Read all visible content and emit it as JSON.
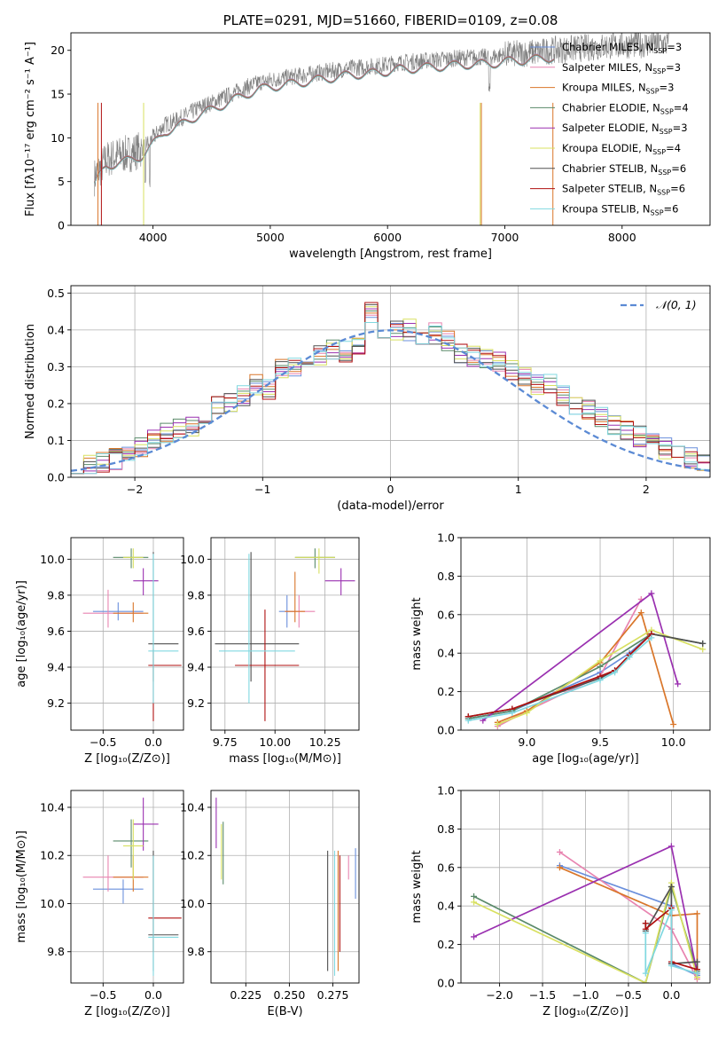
{
  "chart_data": [
    {
      "id": "spectrum",
      "type": "line",
      "title": "PLATE=0291, MJD=51660, FIBERID=0109, z=0.08",
      "xlabel": "wavelength [Angstrom, rest frame]",
      "ylabel": "Flux [fλ10⁻¹⁷ erg cm⁻² s⁻¹ A⁻¹]",
      "xlim": [
        3300,
        8750
      ],
      "ylim": [
        0,
        22
      ],
      "xticks": [
        "4000",
        "5000",
        "6000",
        "7000",
        "8000"
      ],
      "yticks": [
        "0",
        "5",
        "10",
        "15",
        "20"
      ],
      "data_color": "#808080",
      "data_points": [
        [
          3500,
          5.5
        ],
        [
          3600,
          7.5
        ],
        [
          3700,
          8.0
        ],
        [
          3800,
          8.2
        ],
        [
          3900,
          8.7
        ],
        [
          4000,
          10.0
        ],
        [
          4100,
          11.5
        ],
        [
          4200,
          12.0
        ],
        [
          4300,
          12.7
        ],
        [
          4400,
          13.5
        ],
        [
          4500,
          14.0
        ],
        [
          4600,
          14.6
        ],
        [
          4700,
          15.2
        ],
        [
          4800,
          15.8
        ],
        [
          4900,
          16.3
        ],
        [
          5000,
          16.6
        ],
        [
          5100,
          16.8
        ],
        [
          5200,
          17.0
        ],
        [
          5300,
          17.2
        ],
        [
          5400,
          17.4
        ],
        [
          5500,
          17.6
        ],
        [
          5600,
          17.8
        ],
        [
          5700,
          18.0
        ],
        [
          5800,
          18.1
        ],
        [
          5900,
          18.2
        ],
        [
          6000,
          18.4
        ],
        [
          6100,
          18.6
        ],
        [
          6200,
          18.7
        ],
        [
          6300,
          18.8
        ],
        [
          6400,
          18.9
        ],
        [
          6500,
          19.0
        ],
        [
          6600,
          19.1
        ],
        [
          6700,
          19.2
        ],
        [
          6800,
          19.2
        ],
        [
          6900,
          19.3
        ],
        [
          7000,
          19.5
        ],
        [
          7100,
          19.6
        ],
        [
          7200,
          19.7
        ],
        [
          7300,
          19.8
        ],
        [
          7400,
          20.0
        ],
        [
          7600,
          20.2
        ],
        [
          7800,
          20.4
        ],
        [
          8000,
          20.6
        ],
        [
          8200,
          20.7
        ],
        [
          8400,
          20.7
        ]
      ],
      "legend": [
        {
          "name": "Chabrier MILES, N",
          "sub": "SSP",
          "suffix": "=3",
          "color": "#6a8fdc"
        },
        {
          "name": "Salpeter MILES, N",
          "sub": "SSP",
          "suffix": "=3",
          "color": "#e884b0"
        },
        {
          "name": "Kroupa MILES, N",
          "sub": "SSP",
          "suffix": "=3",
          "color": "#d9762a"
        },
        {
          "name": "Chabrier ELODIE, N",
          "sub": "SSP",
          "suffix": "=4",
          "color": "#5a8a6a"
        },
        {
          "name": "Salpeter ELODIE, N",
          "sub": "SSP",
          "suffix": "=3",
          "color": "#9a30b0"
        },
        {
          "name": "Kroupa ELODIE, N",
          "sub": "SSP",
          "suffix": "=4",
          "color": "#d8e060"
        },
        {
          "name": "Chabrier STELIB, N",
          "sub": "SSP",
          "suffix": "=6",
          "color": "#505050"
        },
        {
          "name": "Salpeter STELIB, N",
          "sub": "SSP",
          "suffix": "=6",
          "color": "#b01010"
        },
        {
          "name": "Kroupa STELIB, N",
          "sub": "SSP",
          "suffix": "=6",
          "color": "#80d8e0"
        }
      ]
    },
    {
      "id": "residuals",
      "type": "bar",
      "xlabel": "(data-model)/error",
      "ylabel": "Normed distribution",
      "xlim": [
        -2.5,
        2.5
      ],
      "ylim": [
        0,
        0.52
      ],
      "xticks": [
        "−2",
        "−1",
        "0",
        "1",
        "2"
      ],
      "yticks": [
        "0.0",
        "0.1",
        "0.2",
        "0.3",
        "0.4",
        "0.5"
      ],
      "legend_label": "𝒩(0, 1)",
      "bin_width": 0.1,
      "bins_start": -2.5,
      "hist": [
        0.03,
        0.03,
        0.04,
        0.05,
        0.06,
        0.08,
        0.1,
        0.12,
        0.13,
        0.14,
        0.17,
        0.19,
        0.2,
        0.22,
        0.25,
        0.24,
        0.3,
        0.3,
        0.33,
        0.33,
        0.35,
        0.34,
        0.36,
        0.45,
        0.39,
        0.4,
        0.4,
        0.38,
        0.39,
        0.37,
        0.34,
        0.33,
        0.32,
        0.31,
        0.29,
        0.27,
        0.25,
        0.25,
        0.22,
        0.2,
        0.18,
        0.16,
        0.14,
        0.13,
        0.11,
        0.1,
        0.08,
        0.07,
        0.05,
        0.04
      ]
    },
    {
      "id": "age_vs_Z",
      "type": "scatter",
      "xlabel": "Z [log₁₀(Z/Z⊙)]",
      "ylabel": "age  [log₁₀(age/yr)]",
      "xlim": [
        -0.82,
        0.3
      ],
      "ylim": [
        9.05,
        10.12
      ],
      "xticks": [
        "−0.5",
        "0.0"
      ],
      "yticks": [
        "9.2",
        "9.4",
        "9.6",
        "9.8",
        "10.0"
      ],
      "points": [
        {
          "x": -0.35,
          "y": 9.71,
          "xl": -0.6,
          "xh": -0.1,
          "yl": 9.66,
          "yh": 9.76,
          "color": "#6a8fdc"
        },
        {
          "x": -0.45,
          "y": 9.7,
          "xl": -0.7,
          "xh": -0.1,
          "yl": 9.62,
          "yh": 9.83,
          "color": "#e884b0"
        },
        {
          "x": -0.2,
          "y": 9.7,
          "xl": -0.4,
          "xh": -0.05,
          "yl": 9.65,
          "yh": 9.76,
          "color": "#d9762a"
        },
        {
          "x": -0.22,
          "y": 10.01,
          "xl": -0.4,
          "xh": -0.05,
          "yl": 9.95,
          "yh": 10.06,
          "color": "#5a8a6a"
        },
        {
          "x": -0.1,
          "y": 9.88,
          "xl": -0.2,
          "xh": 0.05,
          "yl": 9.8,
          "yh": 9.95,
          "color": "#9a30b0"
        },
        {
          "x": -0.2,
          "y": 10.01,
          "xl": -0.3,
          "xh": -0.1,
          "yl": 9.95,
          "yh": 10.06,
          "color": "#d8e060"
        },
        {
          "x": 0.0,
          "y": 9.53,
          "xl": -0.05,
          "xh": 0.25,
          "yl": 9.32,
          "yh": 10.04,
          "color": "#505050"
        },
        {
          "x": 0.0,
          "y": 9.41,
          "xl": -0.05,
          "xh": 0.28,
          "yl": 9.1,
          "yh": 9.5,
          "color": "#b01010"
        },
        {
          "x": 0.0,
          "y": 9.49,
          "xl": -0.05,
          "xh": 0.25,
          "yl": 9.2,
          "yh": 10.03,
          "color": "#80d8e0"
        }
      ]
    },
    {
      "id": "age_vs_mass",
      "type": "scatter",
      "xlabel": "mass [log₁₀(M/M⊙)]",
      "ylabel": "",
      "xlim": [
        9.68,
        10.42
      ],
      "ylim": [
        9.05,
        10.12
      ],
      "xticks": [
        "9.75",
        "10.00",
        "10.25"
      ],
      "yticks": [
        "9.2",
        "9.4",
        "9.6",
        "9.8",
        "10.0"
      ],
      "points": [
        {
          "x": 10.06,
          "y": 9.71,
          "xl": 10.02,
          "xh": 10.1,
          "yl": 9.62,
          "yh": 9.8,
          "color": "#6a8fdc"
        },
        {
          "x": 10.12,
          "y": 9.71,
          "xl": 10.05,
          "xh": 10.2,
          "yl": 9.62,
          "yh": 9.8,
          "color": "#e884b0"
        },
        {
          "x": 10.1,
          "y": 9.71,
          "xl": 10.05,
          "xh": 10.15,
          "yl": 9.65,
          "yh": 9.93,
          "color": "#d9762a"
        },
        {
          "x": 10.2,
          "y": 10.01,
          "xl": 10.1,
          "xh": 10.3,
          "yl": 9.95,
          "yh": 10.06,
          "color": "#5a8a6a"
        },
        {
          "x": 10.33,
          "y": 9.88,
          "xl": 10.25,
          "xh": 10.4,
          "yl": 9.8,
          "yh": 9.95,
          "color": "#9a30b0"
        },
        {
          "x": 10.22,
          "y": 10.01,
          "xl": 10.1,
          "xh": 10.3,
          "yl": 9.92,
          "yh": 10.06,
          "color": "#d8e060"
        },
        {
          "x": 9.88,
          "y": 9.53,
          "xl": 9.7,
          "xh": 10.12,
          "yl": 9.32,
          "yh": 10.04,
          "color": "#505050"
        },
        {
          "x": 9.95,
          "y": 9.41,
          "xl": 9.8,
          "xh": 10.12,
          "yl": 9.1,
          "yh": 9.72,
          "color": "#b01010"
        },
        {
          "x": 9.87,
          "y": 9.49,
          "xl": 9.72,
          "xh": 10.1,
          "yl": 9.2,
          "yh": 10.03,
          "color": "#80d8e0"
        }
      ]
    },
    {
      "id": "weight_vs_age",
      "type": "line",
      "xlabel": "age  [log₁₀(age/yr)]",
      "ylabel": "mass weight",
      "xlim": [
        8.55,
        10.25
      ],
      "ylim": [
        0,
        1.0
      ],
      "xticks": [
        "9.0",
        "9.5",
        "10.0"
      ],
      "yticks": [
        "0.0",
        "0.2",
        "0.4",
        "0.6",
        "0.8",
        "1.0"
      ],
      "series": [
        {
          "color": "#6a8fdc",
          "x": [
            8.6,
            8.9,
            9.5,
            9.7,
            9.85
          ],
          "y": [
            0.06,
            0.1,
            0.3,
            0.4,
            0.5
          ]
        },
        {
          "color": "#e884b0",
          "x": [
            8.8,
            9.0,
            9.5,
            9.78
          ],
          "y": [
            0.02,
            0.1,
            0.28,
            0.68
          ]
        },
        {
          "color": "#d9762a",
          "x": [
            8.8,
            9.0,
            9.5,
            9.78,
            10.0
          ],
          "y": [
            0.04,
            0.1,
            0.35,
            0.61,
            0.03
          ]
        },
        {
          "color": "#5a8a6a",
          "x": [
            8.6,
            8.9,
            9.5,
            9.85,
            10.2
          ],
          "y": [
            0.06,
            0.1,
            0.33,
            0.5,
            0.45
          ]
        },
        {
          "color": "#9a30b0",
          "x": [
            8.7,
            9.85,
            10.03
          ],
          "y": [
            0.05,
            0.71,
            0.24
          ]
        },
        {
          "color": "#d8e060",
          "x": [
            8.8,
            9.0,
            9.5,
            9.85,
            10.2
          ],
          "y": [
            0.03,
            0.09,
            0.36,
            0.52,
            0.42
          ]
        },
        {
          "color": "#505050",
          "x": [
            8.6,
            8.9,
            9.5,
            9.6,
            9.7,
            9.85,
            10.2
          ],
          "y": [
            0.07,
            0.11,
            0.27,
            0.31,
            0.39,
            0.5,
            0.45
          ]
        },
        {
          "color": "#b01010",
          "x": [
            8.6,
            8.9,
            9.5,
            9.6,
            9.7,
            9.85
          ],
          "y": [
            0.07,
            0.11,
            0.28,
            0.31,
            0.39,
            0.5
          ]
        },
        {
          "color": "#80d8e0",
          "x": [
            8.6,
            8.9,
            9.5,
            9.6,
            9.7,
            9.85
          ],
          "y": [
            0.05,
            0.09,
            0.26,
            0.3,
            0.38,
            0.48
          ]
        }
      ]
    },
    {
      "id": "mass_vs_Z",
      "type": "scatter",
      "xlabel": "Z [log₁₀(Z/Z⊙)]",
      "ylabel": "mass [log₁₀(M/M⊙)]",
      "xlim": [
        -0.82,
        0.3
      ],
      "ylim": [
        9.67,
        10.47
      ],
      "xticks": [
        "−0.5",
        "0.0"
      ],
      "yticks": [
        "9.8",
        "10.0",
        "10.2",
        "10.4"
      ],
      "points": [
        {
          "x": -0.3,
          "y": 10.06,
          "xl": -0.6,
          "xh": -0.1,
          "yl": 10.0,
          "yh": 10.1,
          "color": "#6a8fdc"
        },
        {
          "x": -0.45,
          "y": 10.11,
          "xl": -0.7,
          "xh": -0.1,
          "yl": 10.05,
          "yh": 10.2,
          "color": "#e884b0"
        },
        {
          "x": -0.2,
          "y": 10.11,
          "xl": -0.4,
          "xh": -0.05,
          "yl": 10.05,
          "yh": 10.2,
          "color": "#d9762a"
        },
        {
          "x": -0.22,
          "y": 10.26,
          "xl": -0.4,
          "xh": -0.05,
          "yl": 10.15,
          "yh": 10.35,
          "color": "#5a8a6a"
        },
        {
          "x": -0.1,
          "y": 10.33,
          "xl": -0.2,
          "xh": 0.05,
          "yl": 10.22,
          "yh": 10.44,
          "color": "#9a30b0"
        },
        {
          "x": -0.2,
          "y": 10.24,
          "xl": -0.3,
          "xh": -0.1,
          "yl": 10.1,
          "yh": 10.35,
          "color": "#d8e060"
        },
        {
          "x": 0.0,
          "y": 9.87,
          "xl": -0.05,
          "xh": 0.25,
          "yl": 9.72,
          "yh": 10.22,
          "color": "#505050"
        },
        {
          "x": 0.0,
          "y": 9.94,
          "xl": -0.05,
          "xh": 0.28,
          "yl": 9.8,
          "yh": 10.2,
          "color": "#b01010"
        },
        {
          "x": 0.0,
          "y": 9.86,
          "xl": -0.05,
          "xh": 0.25,
          "yl": 9.7,
          "yh": 10.2,
          "color": "#80d8e0"
        }
      ]
    },
    {
      "id": "mass_vs_EBV",
      "type": "scatter",
      "xlabel": "E(B-V)",
      "ylabel": "",
      "xlim": [
        0.205,
        0.29
      ],
      "ylim": [
        9.67,
        10.47
      ],
      "xticks": [
        "0.225",
        "0.250",
        "0.275"
      ],
      "yticks": [
        "9.8",
        "10.0",
        "10.2",
        "10.4"
      ],
      "points": [
        {
          "x": 0.288,
          "y": 10.12,
          "xl": 0.288,
          "xh": 0.288,
          "yl": 10.02,
          "yh": 10.23,
          "color": "#6a8fdc"
        },
        {
          "x": 0.284,
          "y": 10.15,
          "xl": 0.284,
          "xh": 0.284,
          "yl": 10.1,
          "yh": 10.2,
          "color": "#e884b0"
        },
        {
          "x": 0.278,
          "y": 9.95,
          "xl": 0.278,
          "xh": 0.278,
          "yl": 9.72,
          "yh": 10.22,
          "color": "#d9762a"
        },
        {
          "x": 0.212,
          "y": 10.22,
          "xl": 0.212,
          "xh": 0.212,
          "yl": 10.08,
          "yh": 10.34,
          "color": "#5a8a6a"
        },
        {
          "x": 0.208,
          "y": 10.34,
          "xl": 0.208,
          "xh": 0.208,
          "yl": 10.23,
          "yh": 10.44,
          "color": "#9a30b0"
        },
        {
          "x": 0.211,
          "y": 10.2,
          "xl": 0.211,
          "xh": 0.211,
          "yl": 10.1,
          "yh": 10.33,
          "color": "#d8e060"
        },
        {
          "x": 0.272,
          "y": 9.95,
          "xl": 0.272,
          "xh": 0.272,
          "yl": 9.72,
          "yh": 10.22,
          "color": "#505050"
        },
        {
          "x": 0.279,
          "y": 9.95,
          "xl": 0.279,
          "xh": 0.279,
          "yl": 9.8,
          "yh": 10.2,
          "color": "#b01010"
        },
        {
          "x": 0.276,
          "y": 9.95,
          "xl": 0.276,
          "xh": 0.276,
          "yl": 9.7,
          "yh": 10.22,
          "color": "#80d8e0"
        }
      ]
    },
    {
      "id": "weight_vs_Z",
      "type": "line",
      "xlabel": "Z [log₁₀(Z/Z⊙)]",
      "ylabel": "mass weight",
      "xlim": [
        -2.45,
        0.45
      ],
      "ylim": [
        0,
        1.0
      ],
      "xticks": [
        "−2.0",
        "−1.5",
        "−1.0",
        "−0.5",
        "0.0"
      ],
      "yticks": [
        "0.0",
        "0.2",
        "0.4",
        "0.6",
        "0.8",
        "1.0"
      ],
      "series": [
        {
          "color": "#6a8fdc",
          "x": [
            -1.3,
            0.0,
            0.0,
            0.3
          ],
          "y": [
            0.61,
            0.4,
            0.1,
            0.04
          ]
        },
        {
          "color": "#e884b0",
          "x": [
            -1.3,
            0.0,
            0.3
          ],
          "y": [
            0.68,
            0.28,
            0.02
          ]
        },
        {
          "color": "#d9762a",
          "x": [
            -1.3,
            0.0,
            0.3,
            0.3
          ],
          "y": [
            0.6,
            0.35,
            0.36,
            0.03
          ]
        },
        {
          "color": "#5a8a6a",
          "x": [
            -2.3,
            -0.3,
            0.0,
            0.3
          ],
          "y": [
            0.45,
            0.0,
            0.5,
            0.06
          ]
        },
        {
          "color": "#9a30b0",
          "x": [
            -2.3,
            0.0,
            0.3
          ],
          "y": [
            0.24,
            0.71,
            0.05
          ]
        },
        {
          "color": "#d8e060",
          "x": [
            -2.3,
            -0.3,
            0.0,
            0.3
          ],
          "y": [
            0.42,
            0.0,
            0.52,
            0.03
          ]
        },
        {
          "color": "#505050",
          "x": [
            -0.3,
            -0.3,
            0.0,
            0.0,
            0.3,
            0.3
          ],
          "y": [
            0.31,
            0.27,
            0.5,
            0.1,
            0.11,
            0.07
          ]
        },
        {
          "color": "#b01010",
          "x": [
            -0.3,
            -0.3,
            0.0,
            0.0,
            0.3
          ],
          "y": [
            0.31,
            0.28,
            0.39,
            0.11,
            0.07
          ]
        },
        {
          "color": "#80d8e0",
          "x": [
            -0.3,
            -0.3,
            0.0,
            0.0,
            0.3
          ],
          "y": [
            0.26,
            0.05,
            0.38,
            0.09,
            0.05
          ]
        }
      ]
    }
  ]
}
